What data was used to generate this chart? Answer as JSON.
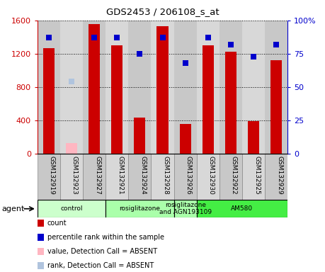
{
  "title": "GDS2453 / 206108_s_at",
  "samples": [
    "GSM132919",
    "GSM132923",
    "GSM132927",
    "GSM132921",
    "GSM132924",
    "GSM132928",
    "GSM132926",
    "GSM132930",
    "GSM132922",
    "GSM132925",
    "GSM132929"
  ],
  "counts": [
    1270,
    null,
    1560,
    1300,
    430,
    1530,
    360,
    1300,
    1220,
    390,
    1120
  ],
  "counts_absent": [
    null,
    130,
    null,
    null,
    null,
    null,
    null,
    null,
    null,
    null,
    null
  ],
  "percentile_ranks": [
    87,
    null,
    87,
    87,
    75,
    87,
    68,
    87,
    82,
    73,
    82
  ],
  "percentile_ranks_absent": [
    null,
    54,
    null,
    null,
    null,
    null,
    null,
    null,
    null,
    null,
    null
  ],
  "count_ylim": [
    0,
    1600
  ],
  "rank_ylim": [
    0,
    100
  ],
  "left_yticks": [
    0,
    400,
    800,
    1200,
    1600
  ],
  "right_yticks": [
    0,
    25,
    50,
    75,
    100
  ],
  "agent_groups": [
    {
      "label": "control",
      "start": 0,
      "end": 3,
      "color": "#ccffcc"
    },
    {
      "label": "rosiglitazone",
      "start": 3,
      "end": 6,
      "color": "#aaffaa"
    },
    {
      "label": "rosiglitazone\nand AGN193109",
      "start": 6,
      "end": 7,
      "color": "#aaffaa"
    },
    {
      "label": "AM580",
      "start": 7,
      "end": 11,
      "color": "#44ee44"
    }
  ],
  "bar_color": "#CC0000",
  "bar_absent_color": "#FFB6C1",
  "dot_color": "#0000CC",
  "dot_absent_color": "#B0C4DE",
  "bar_width": 0.5,
  "legend_items": [
    {
      "label": "count",
      "color": "#CC0000"
    },
    {
      "label": "percentile rank within the sample",
      "color": "#0000CC"
    },
    {
      "label": "value, Detection Call = ABSENT",
      "color": "#FFB6C1"
    },
    {
      "label": "rank, Detection Call = ABSENT",
      "color": "#B0C4DE"
    }
  ],
  "agent_label": "agent",
  "tick_color_left": "#CC0000",
  "tick_color_right": "#0000CC",
  "col_colors": [
    "#c8c8c8",
    "#d8d8d8"
  ]
}
